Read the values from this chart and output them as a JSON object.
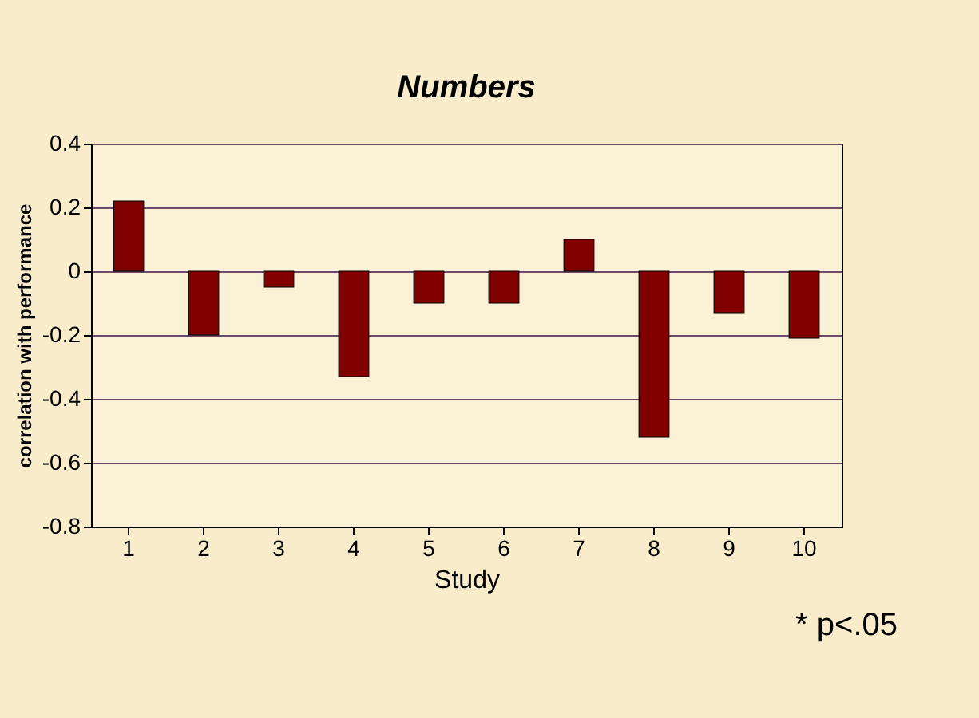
{
  "chart_data": {
    "type": "bar",
    "title": "Numbers",
    "xlabel": "Study",
    "ylabel": "correlation with performance",
    "categories": [
      "1",
      "2",
      "3",
      "4",
      "5",
      "6",
      "7",
      "8",
      "9",
      "10"
    ],
    "values": [
      0.22,
      -0.2,
      -0.05,
      -0.33,
      -0.1,
      -0.1,
      0.1,
      -0.52,
      -0.13,
      -0.21
    ],
    "color": "#800000",
    "ylim": [
      -0.8,
      0.4
    ],
    "yticks": [
      -0.8,
      -0.6,
      -0.4,
      -0.2,
      {
        "value": 0,
        "label": "0"
      },
      0.2,
      0.4
    ],
    "grid": "y",
    "annotations": [
      "* p<.05"
    ]
  }
}
